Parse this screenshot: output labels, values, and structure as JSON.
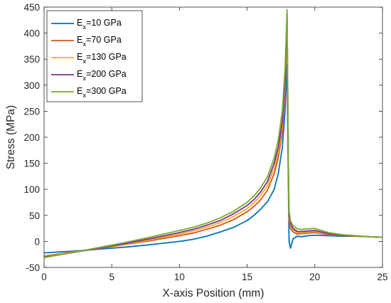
{
  "chart_data": {
    "type": "line",
    "title": "",
    "xlabel": "X-axis Position (mm)",
    "ylabel": "Stress (MPa)",
    "xlim": [
      0,
      25
    ],
    "ylim": [
      -50,
      450
    ],
    "xticks": [
      0,
      5,
      10,
      15,
      20,
      25
    ],
    "yticks": [
      -50,
      0,
      50,
      100,
      150,
      200,
      250,
      300,
      350,
      400,
      450
    ],
    "grid": false,
    "legend_position": "top-left",
    "series": [
      {
        "name": "Ex=10 GPa",
        "legend_main": "E",
        "legend_sub": "x",
        "legend_rest": "=10 GPa",
        "color": "#0072BD",
        "x": [
          0,
          2,
          4,
          6,
          8,
          10,
          11,
          12,
          13,
          14,
          15,
          15.5,
          16,
          16.5,
          17,
          17.3,
          17.6,
          17.8,
          17.95,
          18.05,
          18.1,
          18.2,
          18.4,
          18.7,
          19,
          19.5,
          20,
          21,
          22,
          23,
          24,
          25
        ],
        "y": [
          -22,
          -19,
          -15,
          -11,
          -6,
          0,
          4,
          10,
          18,
          27,
          40,
          50,
          62,
          76,
          100,
          130,
          180,
          250,
          340,
          100,
          0,
          -13,
          5,
          10,
          9,
          11,
          12,
          11,
          10,
          10,
          9,
          8
        ]
      },
      {
        "name": "Ex=70 GPa",
        "legend_main": "E",
        "legend_sub": "x",
        "legend_rest": "=70 GPa",
        "color": "#D95319",
        "x": [
          0,
          2,
          4,
          6,
          8,
          10,
          11,
          12,
          13,
          14,
          15,
          15.5,
          16,
          16.5,
          17,
          17.3,
          17.6,
          17.8,
          17.95,
          18.05,
          18.1,
          18.2,
          18.4,
          18.7,
          19,
          19.5,
          20,
          21,
          22,
          23,
          24,
          25
        ],
        "y": [
          -28,
          -21,
          -14,
          -6,
          2,
          11,
          16,
          23,
          31,
          42,
          57,
          67,
          80,
          98,
          130,
          160,
          210,
          290,
          420,
          120,
          40,
          25,
          18,
          14,
          15,
          16,
          17,
          13,
          11,
          10,
          9,
          8
        ]
      },
      {
        "name": "Ex=130 GPa",
        "legend_main": "E",
        "legend_sub": "x",
        "legend_rest": "=130 GPa",
        "color": "#EDB120",
        "x": [
          0,
          2,
          4,
          6,
          8,
          10,
          11,
          12,
          13,
          14,
          15,
          15.5,
          16,
          16.5,
          17,
          17.3,
          17.6,
          17.8,
          17.95,
          18.05,
          18.1,
          18.2,
          18.4,
          18.7,
          19,
          19.5,
          20,
          21,
          22,
          23,
          24,
          25
        ],
        "y": [
          -29,
          -21,
          -13,
          -5,
          4,
          14,
          20,
          27,
          36,
          48,
          63,
          74,
          88,
          107,
          140,
          170,
          220,
          300,
          430,
          130,
          45,
          30,
          22,
          17,
          17,
          18,
          19,
          14,
          12,
          11,
          9,
          8
        ]
      },
      {
        "name": "Ex=200 GPa",
        "legend_main": "E",
        "legend_sub": "x",
        "legend_rest": "=200 GPa",
        "color": "#7E2F8E",
        "x": [
          0,
          2,
          4,
          6,
          8,
          10,
          11,
          12,
          13,
          14,
          15,
          15.5,
          16,
          16.5,
          17,
          17.3,
          17.6,
          17.8,
          17.95,
          18.05,
          18.1,
          18.2,
          18.4,
          18.7,
          19,
          19.5,
          20,
          21,
          22,
          23,
          24,
          25
        ],
        "y": [
          -30,
          -22,
          -13,
          -4,
          6,
          17,
          23,
          31,
          40,
          53,
          69,
          80,
          95,
          115,
          150,
          180,
          230,
          310,
          437,
          140,
          50,
          34,
          25,
          19,
          19,
          20,
          21,
          15,
          12,
          11,
          9,
          8
        ]
      },
      {
        "name": "Ex=300 GPa",
        "legend_main": "E",
        "legend_sub": "x",
        "legend_rest": "=300 GPa",
        "color": "#77AC30",
        "x": [
          0,
          2,
          4,
          6,
          8,
          10,
          11,
          12,
          13,
          14,
          15,
          15.5,
          16,
          16.5,
          17,
          17.3,
          17.6,
          17.8,
          17.95,
          18.05,
          18.1,
          18.2,
          18.4,
          18.7,
          19,
          19.5,
          20,
          21,
          22,
          23,
          24,
          25
        ],
        "y": [
          -31,
          -22,
          -12,
          -2,
          9,
          21,
          27,
          35,
          45,
          58,
          75,
          87,
          103,
          124,
          160,
          195,
          250,
          330,
          445,
          150,
          60,
          40,
          30,
          24,
          23,
          24,
          25,
          17,
          13,
          11,
          9,
          8
        ]
      }
    ]
  }
}
